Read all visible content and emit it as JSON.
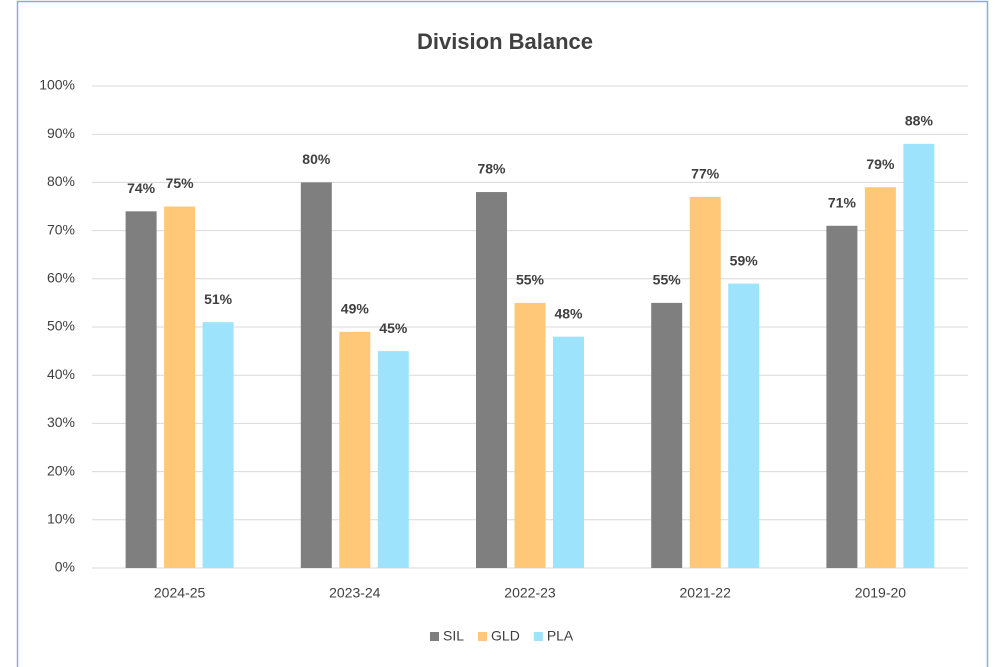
{
  "chart_data": {
    "type": "bar",
    "title": "Division Balance",
    "categories": [
      "2024-25",
      "2023-24",
      "2022-23",
      "2021-22",
      "2019-20"
    ],
    "series": [
      {
        "name": "SIL",
        "color": "#7f7f7f",
        "values": [
          74,
          80,
          78,
          55,
          71
        ],
        "value_labels": [
          "74%",
          "80%",
          "78%",
          "55%",
          "71%"
        ]
      },
      {
        "name": "GLD",
        "color": "#ffc878",
        "values": [
          75,
          49,
          55,
          77,
          79
        ],
        "value_labels": [
          "75%",
          "49%",
          "55%",
          "77%",
          "79%"
        ]
      },
      {
        "name": "PLA",
        "color": "#9de3fc",
        "values": [
          51,
          45,
          48,
          59,
          88
        ],
        "value_labels": [
          "51%",
          "45%",
          "48%",
          "59%",
          "88%"
        ]
      }
    ],
    "ylim": [
      0,
      100
    ],
    "yticks": [
      {
        "value": 0,
        "label": "0%"
      },
      {
        "value": 10,
        "label": "10%"
      },
      {
        "value": 20,
        "label": "20%"
      },
      {
        "value": 30,
        "label": "30%"
      },
      {
        "value": 40,
        "label": "40%"
      },
      {
        "value": 50,
        "label": "50%"
      },
      {
        "value": 60,
        "label": "60%"
      },
      {
        "value": 70,
        "label": "70%"
      },
      {
        "value": 80,
        "label": "80%"
      },
      {
        "value": 90,
        "label": "90%"
      },
      {
        "value": 100,
        "label": "100%"
      }
    ],
    "grid": true,
    "legend": "bottom"
  }
}
